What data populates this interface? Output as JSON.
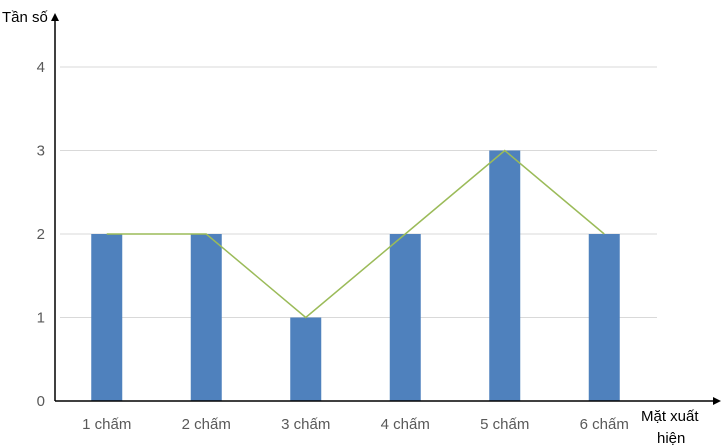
{
  "chart_data": {
    "type": "bar",
    "categories": [
      "1 chấm",
      "2 chấm",
      "3 chấm",
      "4 chấm",
      "5 chấm",
      "6 chấm"
    ],
    "values": [
      2,
      2,
      1,
      2,
      3,
      2
    ],
    "overlay_line": true,
    "ylabel": "Tần số",
    "xlabel_line1": "Mặt xuất",
    "xlabel_line2": "hiện",
    "ylim": [
      0,
      4
    ],
    "yticks": [
      0,
      1,
      2,
      3,
      4
    ],
    "grid": true,
    "colors": {
      "bar": "#4F81BD",
      "line": "#9BBB59",
      "grid": "#D9D9D9",
      "axis": "#000000"
    }
  }
}
